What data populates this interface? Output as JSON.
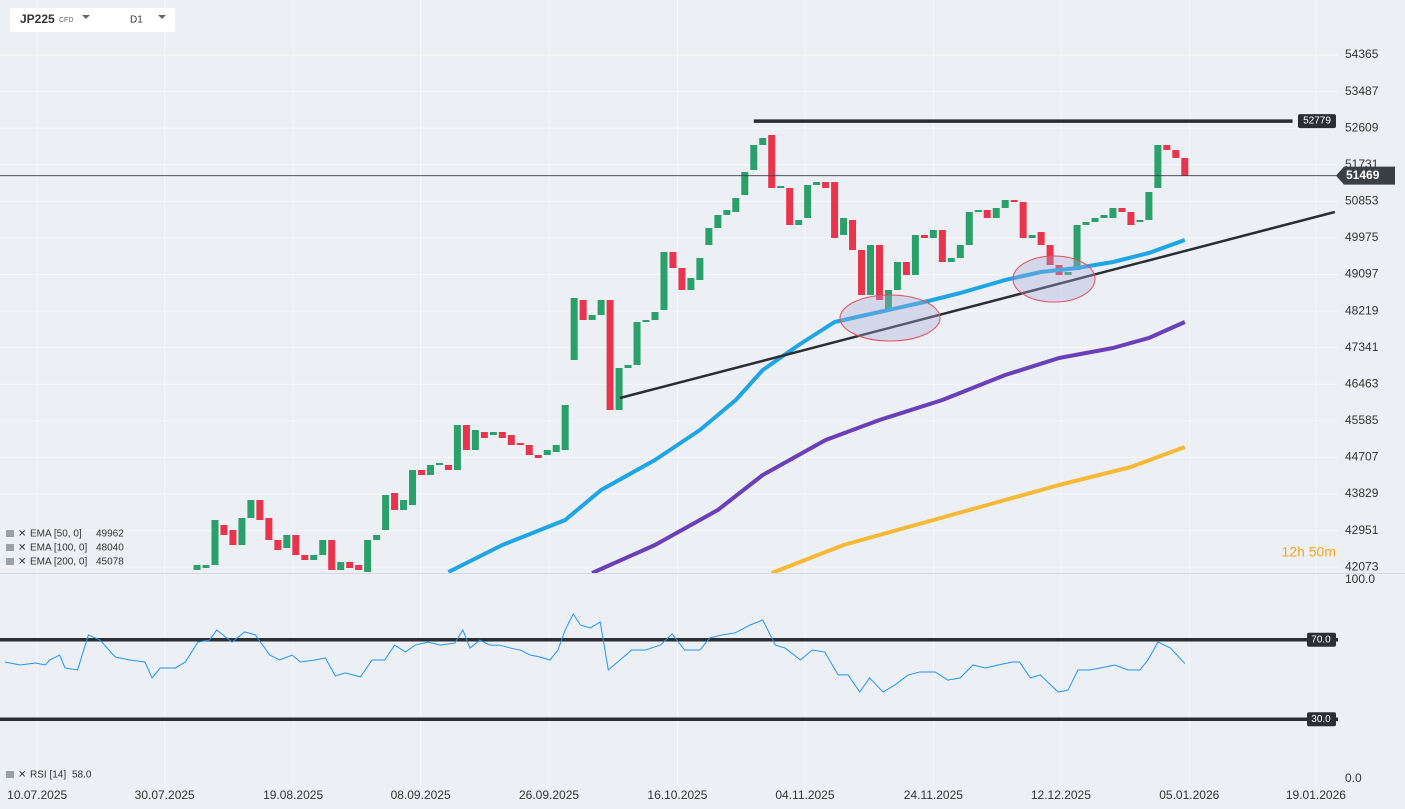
{
  "header": {
    "symbol": "JP225",
    "kind": "CFD",
    "timeframe": "D1"
  },
  "timer": "12h 50m",
  "chart_data": [
    {
      "type": "candlestick",
      "xlim": [
        -21.94,
        127.06
      ],
      "xticks": [
        {
          "value": -17.8,
          "label": "10.07.2025"
        },
        {
          "value": -3.6,
          "label": "30.07.2025"
        },
        {
          "value": 10.7,
          "label": "19.08.2025"
        },
        {
          "value": 24.9,
          "label": "08.09.2025"
        },
        {
          "value": 39.2,
          "label": "26.09.2025"
        },
        {
          "value": 53.5,
          "label": "16.10.2025"
        },
        {
          "value": 67.7,
          "label": "04.11.2025"
        },
        {
          "value": 82.0,
          "label": "24.11.2025"
        },
        {
          "value": 96.2,
          "label": "12.12.2025"
        },
        {
          "value": 110.5,
          "label": "05.01.2026"
        },
        {
          "value": 124.6,
          "label": "19.01.2026"
        }
      ],
      "ylim": [
        41933,
        55685
      ],
      "yticks": [
        54365,
        53487,
        52609,
        51731,
        50853,
        49975,
        49097,
        48219,
        47341,
        46463,
        45585,
        44707,
        43829,
        42951,
        42073
      ],
      "colors": {
        "up": "#2aa06a",
        "down": "#e8344c"
      },
      "candles": [
        [
          42005,
          42125
        ],
        [
          42053,
          42125
        ],
        [
          42125,
          43205
        ],
        [
          43085,
          42845
        ],
        [
          42965,
          42605
        ],
        [
          42605,
          43253
        ],
        [
          43253,
          43685
        ],
        [
          43685,
          43205
        ],
        [
          43253,
          42725
        ],
        [
          42725,
          42485
        ],
        [
          42533,
          42845
        ],
        [
          42845,
          42365
        ],
        [
          42365,
          42245
        ],
        [
          42245,
          42365
        ],
        [
          42365,
          42725
        ],
        [
          42725,
          42005
        ],
        [
          42005,
          42197
        ],
        [
          42197,
          42053
        ],
        [
          42125,
          42005
        ],
        [
          41957,
          42725
        ],
        [
          42725,
          42845
        ],
        [
          42965,
          43805
        ],
        [
          43853,
          43445
        ],
        [
          43445,
          43685
        ],
        [
          43565,
          44405
        ],
        [
          44405,
          44285
        ],
        [
          44285,
          44525
        ],
        [
          44525,
          44573
        ],
        [
          44525,
          44405
        ],
        [
          44405,
          45485
        ],
        [
          45485,
          44885
        ],
        [
          44885,
          45365
        ],
        [
          45317,
          45173
        ],
        [
          45245,
          45317
        ],
        [
          45317,
          45173
        ],
        [
          45245,
          45005
        ],
        [
          45053,
          45005
        ],
        [
          45005,
          44765
        ],
        [
          44765,
          44693
        ],
        [
          44765,
          44885
        ],
        [
          44837,
          45005
        ],
        [
          44885,
          45965
        ],
        [
          47045,
          48533
        ],
        [
          48485,
          48005
        ],
        [
          48005,
          48125
        ],
        [
          48125,
          48485
        ],
        [
          48485,
          45845
        ],
        [
          45845,
          46853
        ],
        [
          46853,
          46925
        ],
        [
          46925,
          47957
        ],
        [
          47957,
          48005
        ],
        [
          48005,
          48197
        ],
        [
          48245,
          49637
        ],
        [
          49637,
          49253
        ],
        [
          49253,
          48725
        ],
        [
          48725,
          49013
        ],
        [
          48965,
          49493
        ],
        [
          49805,
          50213
        ],
        [
          50213,
          50525
        ],
        [
          50525,
          50645
        ],
        [
          50597,
          50933
        ],
        [
          51005,
          51557
        ],
        [
          51605,
          52205
        ],
        [
          52205,
          52373
        ],
        [
          52445,
          51173
        ],
        [
          51173,
          51221
        ],
        [
          51173,
          50285
        ],
        [
          50285,
          50405
        ],
        [
          50453,
          51245
        ],
        [
          51245,
          51317
        ],
        [
          51317,
          51173
        ],
        [
          51317,
          49973
        ],
        [
          50045,
          50453
        ],
        [
          50405,
          49685
        ],
        [
          49685,
          48605
        ],
        [
          48605,
          49805
        ],
        [
          49805,
          48485
        ],
        [
          48245,
          48725
        ],
        [
          48725,
          49397
        ],
        [
          49397,
          49085
        ],
        [
          49085,
          50045
        ],
        [
          50045,
          49973
        ],
        [
          49973,
          50165
        ],
        [
          50165,
          49397
        ],
        [
          49397,
          49493
        ],
        [
          49493,
          49805
        ],
        [
          49805,
          50597
        ],
        [
          50597,
          50645
        ],
        [
          50645,
          50453
        ],
        [
          50453,
          50693
        ],
        [
          50693,
          50885
        ],
        [
          50885,
          50837
        ],
        [
          50837,
          49973
        ],
        [
          49973,
          50045
        ],
        [
          50117,
          49805
        ],
        [
          49805,
          49325
        ],
        [
          49325,
          49085
        ],
        [
          49085,
          49157
        ],
        [
          49205,
          50285
        ],
        [
          50285,
          50357
        ],
        [
          50357,
          50453
        ],
        [
          50453,
          50525
        ],
        [
          50453,
          50693
        ],
        [
          50693,
          50597
        ],
        [
          50597,
          50285
        ],
        [
          50357,
          50405
        ],
        [
          50405,
          51077
        ],
        [
          51173,
          52205
        ],
        [
          52205,
          52085
        ],
        [
          52085,
          51893
        ],
        [
          51893,
          51469
        ]
      ],
      "series": [
        {
          "name": "EMA [50, 0]",
          "legend_value": 49962,
          "color": "#1ea5e6",
          "x": [
            28,
            34,
            41,
            45,
            51,
            56,
            60,
            63,
            67,
            71,
            76,
            81,
            85,
            90,
            94,
            98,
            102,
            106,
            110
          ],
          "values": [
            41957,
            42605,
            43205,
            43925,
            44645,
            45365,
            46085,
            46805,
            47405,
            47957,
            48197,
            48437,
            48653,
            48965,
            49157,
            49253,
            49397,
            49613,
            49925
          ]
        },
        {
          "name": "EMA [100, 0]",
          "legend_value": 48040,
          "color": "#6b3fb8",
          "x": [
            44,
            51,
            58,
            63,
            70,
            76,
            83,
            90,
            96,
            102,
            106,
            110
          ],
          "values": [
            41933,
            42605,
            43445,
            44285,
            45125,
            45605,
            46085,
            46685,
            47093,
            47333,
            47573,
            47957
          ]
        },
        {
          "name": "EMA [200, 0]",
          "legend_value": 45078,
          "color": "#f6b935",
          "x": [
            64,
            72,
            80,
            88,
            96,
            104,
            110
          ],
          "values": [
            41933,
            42605,
            43085,
            43565,
            44045,
            44477,
            44957
          ]
        }
      ],
      "lines": [
        {
          "x": [
            62,
            122
          ],
          "values": [
            52779,
            52779
          ],
          "tag": 52779
        },
        {
          "x": [
            47.1,
            126.7
          ],
          "values": [
            46133,
            50597
          ]
        }
      ],
      "last_price": 51469
    },
    {
      "type": "line",
      "name": "RSI [14]",
      "last": {
        "value": 58,
        "label": "58.0"
      },
      "color": "#2196f3",
      "ylim": [
        0,
        100
      ],
      "yticks": [
        {
          "value": 100,
          "label": "100.0"
        },
        {
          "value": 70,
          "label": "70.0"
        },
        {
          "value": 30,
          "label": "30.0"
        },
        {
          "value": 0,
          "label": "0.0"
        }
      ],
      "levels": [
        70,
        30
      ],
      "x": [
        -21.4,
        -19.7,
        -18.0,
        -16.9,
        -16.4,
        -15.3,
        -14.7,
        -13.3,
        -12.1,
        -10.8,
        -9.1,
        -7.5,
        -5.8,
        -5.0,
        -4.1,
        -2.4,
        -1.3,
        0.1,
        1.4,
        2.2,
        3.9,
        5.3,
        6.5,
        8.1,
        9.2,
        10.6,
        11.5,
        13.1,
        14.3,
        15.4,
        16.5,
        18.2,
        19.5,
        20.9,
        22.0,
        23.2,
        24.3,
        25.7,
        27.1,
        28.7,
        29.6,
        30.4,
        31.5,
        32.6,
        33.7,
        34.9,
        36.0,
        37.1,
        38.2,
        39.3,
        40.2,
        41.0,
        41.9,
        42.7,
        43.8,
        44.9,
        45.8,
        47.1,
        48.4,
        49.9,
        51.6,
        52.9,
        54.3,
        56.0,
        57.1,
        58.5,
        59.9,
        61.6,
        63.0,
        64.4,
        65.5,
        67.2,
        68.5,
        69.9,
        71.4,
        72.5,
        73.8,
        74.9,
        76.4,
        77.7,
        79.2,
        80.5,
        82.2,
        83.6,
        85.0,
        86.4,
        87.8,
        89.2,
        90.8,
        91.6,
        92.8,
        93.9,
        95.9,
        97.0,
        98.1,
        99.4,
        100.6,
        102.2,
        103.7,
        105.0,
        105.9,
        107.0,
        108.4,
        110.0
      ],
      "values": [
        58.8,
        57.3,
        58.3,
        57.3,
        59.8,
        62.3,
        55.8,
        54.8,
        72.4,
        69.8,
        61.3,
        59.8,
        58.8,
        50.8,
        55.8,
        55.8,
        58.8,
        68.8,
        69.8,
        74.9,
        68.8,
        73.9,
        72.4,
        62.3,
        59.8,
        62.3,
        58.8,
        59.8,
        60.8,
        51.8,
        53.3,
        51.3,
        59.8,
        59.8,
        67.3,
        63.8,
        67.3,
        68.8,
        67.3,
        68.3,
        74.9,
        65.8,
        69.8,
        67.3,
        67.3,
        65.8,
        64.8,
        62.3,
        61.3,
        59.8,
        64.8,
        74.9,
        82.9,
        77.4,
        75.9,
        78.9,
        54.8,
        59.8,
        64.8,
        64.8,
        67.3,
        72.9,
        64.8,
        64.8,
        70.9,
        72.4,
        73.4,
        77.4,
        79.9,
        67.3,
        65.8,
        59.8,
        64.8,
        63.8,
        52.3,
        52.3,
        43.7,
        50.8,
        43.7,
        47.2,
        52.3,
        53.8,
        53.8,
        49.7,
        50.8,
        57.3,
        55.8,
        57.3,
        58.8,
        58.8,
        50.8,
        52.3,
        43.7,
        44.7,
        54.8,
        54.8,
        55.8,
        57.3,
        54.8,
        54.8,
        59.8,
        68.8,
        65.8,
        58.0
      ]
    }
  ]
}
